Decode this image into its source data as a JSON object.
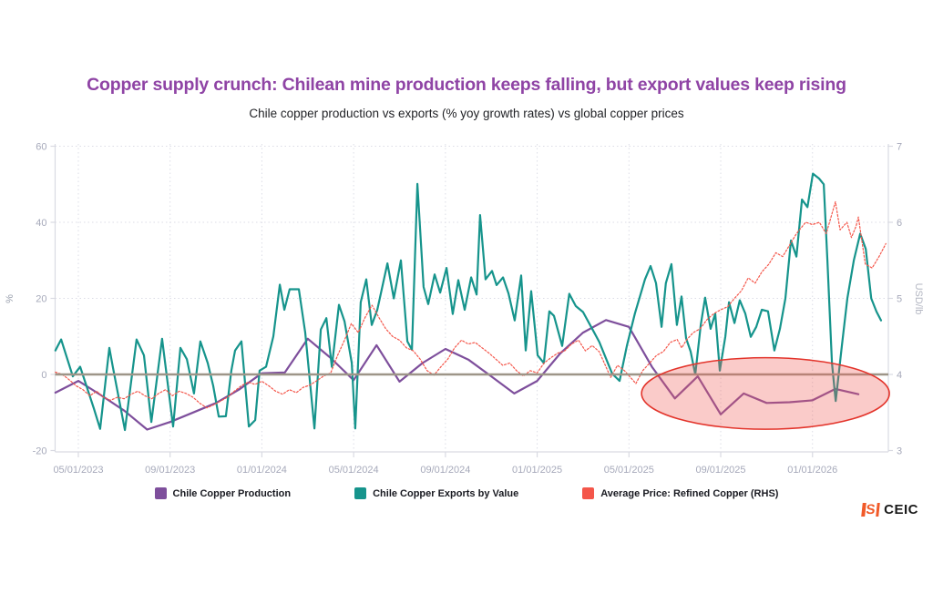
{
  "header": {
    "title": "Copper supply crunch: Chilean mine production keeps falling, but export values keep rising",
    "title_color": "#8f44a5",
    "subtitle": "Chile copper production vs exports (% yoy growth rates) vs global copper prices"
  },
  "logo": {
    "mark_letter": "S",
    "name": "CEIC",
    "mark_color": "#f15a29"
  },
  "chart_data": {
    "type": "line",
    "title": "Copper supply crunch: Chilean mine production keeps falling, but export values keep rising",
    "subtitle": "Chile copper production vs exports (% yoy growth rates) vs global copper prices",
    "x_axis": {
      "start_month": "2023-04",
      "note": "point x = months since 2023-04-01",
      "tick_month_offsets": [
        1,
        5,
        9,
        13,
        17,
        21,
        25,
        29,
        33
      ],
      "tick_labels": [
        "05/01/2023",
        "09/01/2023",
        "01/01/2024",
        "05/01/2024",
        "09/01/2024",
        "01/01/2025",
        "05/01/2025",
        "09/01/2025",
        "01/01/2026"
      ]
    },
    "y_axis_left": {
      "label": "%",
      "ticks": [
        60,
        40,
        20,
        0,
        -20
      ],
      "range": [
        -20,
        60
      ]
    },
    "y_axis_right": {
      "label": "USD/lb",
      "ticks": [
        7,
        6,
        5,
        4,
        3
      ],
      "range": [
        3,
        7
      ]
    },
    "grid": "dotted",
    "legend_position": "bottom",
    "zero_line": {
      "value": 0,
      "color": "#9d9588"
    },
    "annotation": {
      "shape": "ellipse",
      "meaning": "highlights period of falling Chilean production mid-2025 onward",
      "center_month_offset": 30.95,
      "center_value_pct": -5,
      "radius_months": 5.4,
      "radius_pct": 9.4,
      "stroke": "#e3342b",
      "fill": "rgba(241,93,87,0.32)"
    },
    "series": [
      {
        "name": "Chile Copper Production",
        "axis": "left",
        "color": "#7e4f9c",
        "style": "solid",
        "frequency": "monthly",
        "start": "2023-04",
        "values": [
          -4.8,
          -1.7,
          -5.5,
          -9.5,
          -14.5,
          -12.5,
          -10,
          -7.5,
          -4,
          0.3,
          0.5,
          9.4,
          4.3,
          -1.5,
          7.7,
          -1.9,
          3,
          6.7,
          3.9,
          -0.5,
          -5,
          -1.7,
          5.5,
          11,
          14.3,
          12.5,
          2,
          -6.3,
          -0.5,
          -10.5,
          -5,
          -7.5,
          -7.3,
          -6.8,
          -3.8,
          -5.2
        ]
      },
      {
        "name": "Chile Copper Exports by Value",
        "axis": "left",
        "color": "#16948c",
        "style": "solid",
        "frequency": "weekly",
        "points": [
          [
            0,
            6.3
          ],
          [
            0.25,
            9.2
          ],
          [
            0.76,
            -0.5
          ],
          [
            1.08,
            2
          ],
          [
            1.68,
            -9
          ],
          [
            1.95,
            -14.3
          ],
          [
            2.35,
            7
          ],
          [
            2.5,
            2
          ],
          [
            3.03,
            -14.6
          ],
          [
            3.54,
            9.2
          ],
          [
            3.86,
            5
          ],
          [
            4.18,
            -12.5
          ],
          [
            4.65,
            9.4
          ],
          [
            5.13,
            -13.7
          ],
          [
            5.45,
            7
          ],
          [
            5.73,
            4
          ],
          [
            6.04,
            -5
          ],
          [
            6.32,
            8.7
          ],
          [
            6.64,
            3
          ],
          [
            6.88,
            -3
          ],
          [
            7.12,
            -11.1
          ],
          [
            7.43,
            -11
          ],
          [
            7.67,
            1
          ],
          [
            7.83,
            6.3
          ],
          [
            8.11,
            8.7
          ],
          [
            8.43,
            -13.7
          ],
          [
            8.71,
            -12
          ],
          [
            8.9,
            1
          ],
          [
            9.18,
            2
          ],
          [
            9.5,
            10
          ],
          [
            9.78,
            23.6
          ],
          [
            9.98,
            17
          ],
          [
            10.21,
            22.4
          ],
          [
            10.61,
            22.4
          ],
          [
            10.89,
            11
          ],
          [
            11.29,
            -14.2
          ],
          [
            11.57,
            11.8
          ],
          [
            11.81,
            14.8
          ],
          [
            12.05,
            2
          ],
          [
            12.36,
            18.3
          ],
          [
            12.6,
            14
          ],
          [
            12.92,
            3
          ],
          [
            13.07,
            -14.2
          ],
          [
            13.31,
            19
          ],
          [
            13.55,
            25
          ],
          [
            13.79,
            13
          ],
          [
            14.03,
            17
          ],
          [
            14.47,
            29.2
          ],
          [
            14.75,
            20
          ],
          [
            15.06,
            30
          ],
          [
            15.34,
            8.7
          ],
          [
            15.54,
            6.5
          ],
          [
            15.78,
            50.1
          ],
          [
            16.05,
            23
          ],
          [
            16.25,
            18.5
          ],
          [
            16.53,
            26.3
          ],
          [
            16.77,
            21.5
          ],
          [
            17.05,
            28
          ],
          [
            17.32,
            15.9
          ],
          [
            17.56,
            24.8
          ],
          [
            17.84,
            17
          ],
          [
            18.12,
            25.5
          ],
          [
            18.36,
            21
          ],
          [
            18.51,
            41.9
          ],
          [
            18.75,
            25
          ],
          [
            19.03,
            27.2
          ],
          [
            19.23,
            23.5
          ],
          [
            19.51,
            25.5
          ],
          [
            19.75,
            21.3
          ],
          [
            20.02,
            14.2
          ],
          [
            20.3,
            26
          ],
          [
            20.5,
            6.3
          ],
          [
            20.74,
            21.9
          ],
          [
            21.02,
            5
          ],
          [
            21.29,
            3
          ],
          [
            21.53,
            16.6
          ],
          [
            21.73,
            15.4
          ],
          [
            22.09,
            7.5
          ],
          [
            22.4,
            21.2
          ],
          [
            22.68,
            18
          ],
          [
            23,
            16.4
          ],
          [
            23.48,
            11.1
          ],
          [
            23.71,
            8.5
          ],
          [
            24.27,
            0.2
          ],
          [
            24.59,
            -1.7
          ],
          [
            24.91,
            7.5
          ],
          [
            25.26,
            16
          ],
          [
            25.7,
            25
          ],
          [
            25.94,
            28.5
          ],
          [
            26.18,
            24
          ],
          [
            26.42,
            12.5
          ],
          [
            26.61,
            24
          ],
          [
            26.85,
            29
          ],
          [
            27.09,
            13
          ],
          [
            27.29,
            20.5
          ],
          [
            27.49,
            9.5
          ],
          [
            27.69,
            6
          ],
          [
            27.89,
            0
          ],
          [
            28.13,
            13
          ],
          [
            28.32,
            20.2
          ],
          [
            28.56,
            12
          ],
          [
            28.76,
            16
          ],
          [
            28.96,
            1
          ],
          [
            29.2,
            10
          ],
          [
            29.36,
            19
          ],
          [
            29.6,
            13.5
          ],
          [
            29.83,
            19.5
          ],
          [
            30.07,
            16
          ],
          [
            30.31,
            9.9
          ],
          [
            30.55,
            12.5
          ],
          [
            30.79,
            17
          ],
          [
            31.06,
            16.6
          ],
          [
            31.34,
            6.3
          ],
          [
            31.58,
            12
          ],
          [
            31.82,
            20
          ],
          [
            32.06,
            35.2
          ],
          [
            32.3,
            31
          ],
          [
            32.54,
            46
          ],
          [
            32.78,
            44
          ],
          [
            33.02,
            52.8
          ],
          [
            33.29,
            51.5
          ],
          [
            33.49,
            50
          ],
          [
            33.65,
            30
          ],
          [
            33.85,
            3
          ],
          [
            34.01,
            -7
          ],
          [
            34.29,
            8
          ],
          [
            34.52,
            20
          ],
          [
            34.8,
            30
          ],
          [
            35.08,
            37
          ],
          [
            35.32,
            33
          ],
          [
            35.56,
            20
          ],
          [
            35.79,
            16.5
          ],
          [
            35.99,
            14.2
          ]
        ]
      },
      {
        "name": "Average Price: Refined Copper (RHS)",
        "axis": "right",
        "color": "#f4564a",
        "style": "dotted",
        "frequency": "daily",
        "points": [
          [
            0,
            4.03
          ],
          [
            0.3,
            4.0
          ],
          [
            0.6,
            3.93
          ],
          [
            0.9,
            3.85
          ],
          [
            1.2,
            3.8
          ],
          [
            1.5,
            3.72
          ],
          [
            1.8,
            3.78
          ],
          [
            2.1,
            3.7
          ],
          [
            2.4,
            3.66
          ],
          [
            2.7,
            3.7
          ],
          [
            3.0,
            3.68
          ],
          [
            3.3,
            3.74
          ],
          [
            3.6,
            3.78
          ],
          [
            3.9,
            3.72
          ],
          [
            4.2,
            3.68
          ],
          [
            4.5,
            3.75
          ],
          [
            4.8,
            3.8
          ],
          [
            5.1,
            3.72
          ],
          [
            5.4,
            3.78
          ],
          [
            5.7,
            3.75
          ],
          [
            6.0,
            3.7
          ],
          [
            6.3,
            3.62
          ],
          [
            6.6,
            3.56
          ],
          [
            6.9,
            3.6
          ],
          [
            7.2,
            3.65
          ],
          [
            7.5,
            3.7
          ],
          [
            7.8,
            3.78
          ],
          [
            8.1,
            3.85
          ],
          [
            8.4,
            3.9
          ],
          [
            8.7,
            3.87
          ],
          [
            9.0,
            3.91
          ],
          [
            9.3,
            3.85
          ],
          [
            9.6,
            3.78
          ],
          [
            9.9,
            3.74
          ],
          [
            10.2,
            3.8
          ],
          [
            10.5,
            3.76
          ],
          [
            10.8,
            3.83
          ],
          [
            11.1,
            3.86
          ],
          [
            11.4,
            3.92
          ],
          [
            11.7,
            3.98
          ],
          [
            12.0,
            4.02
          ],
          [
            12.3,
            4.25
          ],
          [
            12.6,
            4.45
          ],
          [
            12.9,
            4.67
          ],
          [
            13.2,
            4.55
          ],
          [
            13.5,
            4.75
          ],
          [
            13.8,
            4.91
          ],
          [
            14.1,
            4.75
          ],
          [
            14.4,
            4.6
          ],
          [
            14.7,
            4.5
          ],
          [
            15.0,
            4.45
          ],
          [
            15.3,
            4.35
          ],
          [
            15.6,
            4.31
          ],
          [
            15.9,
            4.2
          ],
          [
            16.2,
            4.05
          ],
          [
            16.5,
            3.99
          ],
          [
            16.8,
            4.1
          ],
          [
            17.1,
            4.2
          ],
          [
            17.4,
            4.35
          ],
          [
            17.7,
            4.45
          ],
          [
            18.0,
            4.4
          ],
          [
            18.3,
            4.42
          ],
          [
            18.6,
            4.35
          ],
          [
            18.9,
            4.28
          ],
          [
            19.2,
            4.2
          ],
          [
            19.5,
            4.12
          ],
          [
            19.8,
            4.15
          ],
          [
            20.1,
            4.05
          ],
          [
            20.4,
            3.98
          ],
          [
            20.7,
            4.05
          ],
          [
            21.0,
            4.02
          ],
          [
            21.3,
            4.15
          ],
          [
            21.6,
            4.22
          ],
          [
            21.9,
            4.28
          ],
          [
            22.2,
            4.31
          ],
          [
            22.5,
            4.4
          ],
          [
            22.8,
            4.45
          ],
          [
            23.1,
            4.31
          ],
          [
            23.4,
            4.38
          ],
          [
            23.7,
            4.3
          ],
          [
            24.0,
            4.1
          ],
          [
            24.2,
            3.96
          ],
          [
            24.5,
            4.12
          ],
          [
            24.8,
            4.05
          ],
          [
            25.1,
            3.95
          ],
          [
            25.3,
            3.88
          ],
          [
            25.6,
            4.05
          ],
          [
            25.9,
            4.15
          ],
          [
            26.2,
            4.25
          ],
          [
            26.5,
            4.3
          ],
          [
            26.8,
            4.42
          ],
          [
            27.1,
            4.46
          ],
          [
            27.3,
            4.35
          ],
          [
            27.5,
            4.45
          ],
          [
            27.8,
            4.55
          ],
          [
            28.1,
            4.6
          ],
          [
            28.4,
            4.72
          ],
          [
            28.7,
            4.8
          ],
          [
            29.0,
            4.85
          ],
          [
            29.3,
            4.89
          ],
          [
            29.6,
            5.0
          ],
          [
            29.9,
            5.1
          ],
          [
            30.2,
            5.27
          ],
          [
            30.5,
            5.2
          ],
          [
            30.8,
            5.35
          ],
          [
            31.1,
            5.45
          ],
          [
            31.4,
            5.6
          ],
          [
            31.7,
            5.55
          ],
          [
            32.0,
            5.7
          ],
          [
            32.3,
            5.85
          ],
          [
            32.7,
            6.0
          ],
          [
            33.0,
            5.97
          ],
          [
            33.3,
            6.0
          ],
          [
            33.6,
            5.85
          ],
          [
            34.0,
            6.27
          ],
          [
            34.2,
            5.9
          ],
          [
            34.5,
            6.0
          ],
          [
            34.7,
            5.8
          ],
          [
            34.9,
            5.95
          ],
          [
            35.0,
            6.07
          ],
          [
            35.3,
            5.45
          ],
          [
            35.6,
            5.4
          ],
          [
            35.9,
            5.55
          ],
          [
            36.2,
            5.72
          ]
        ]
      }
    ]
  }
}
